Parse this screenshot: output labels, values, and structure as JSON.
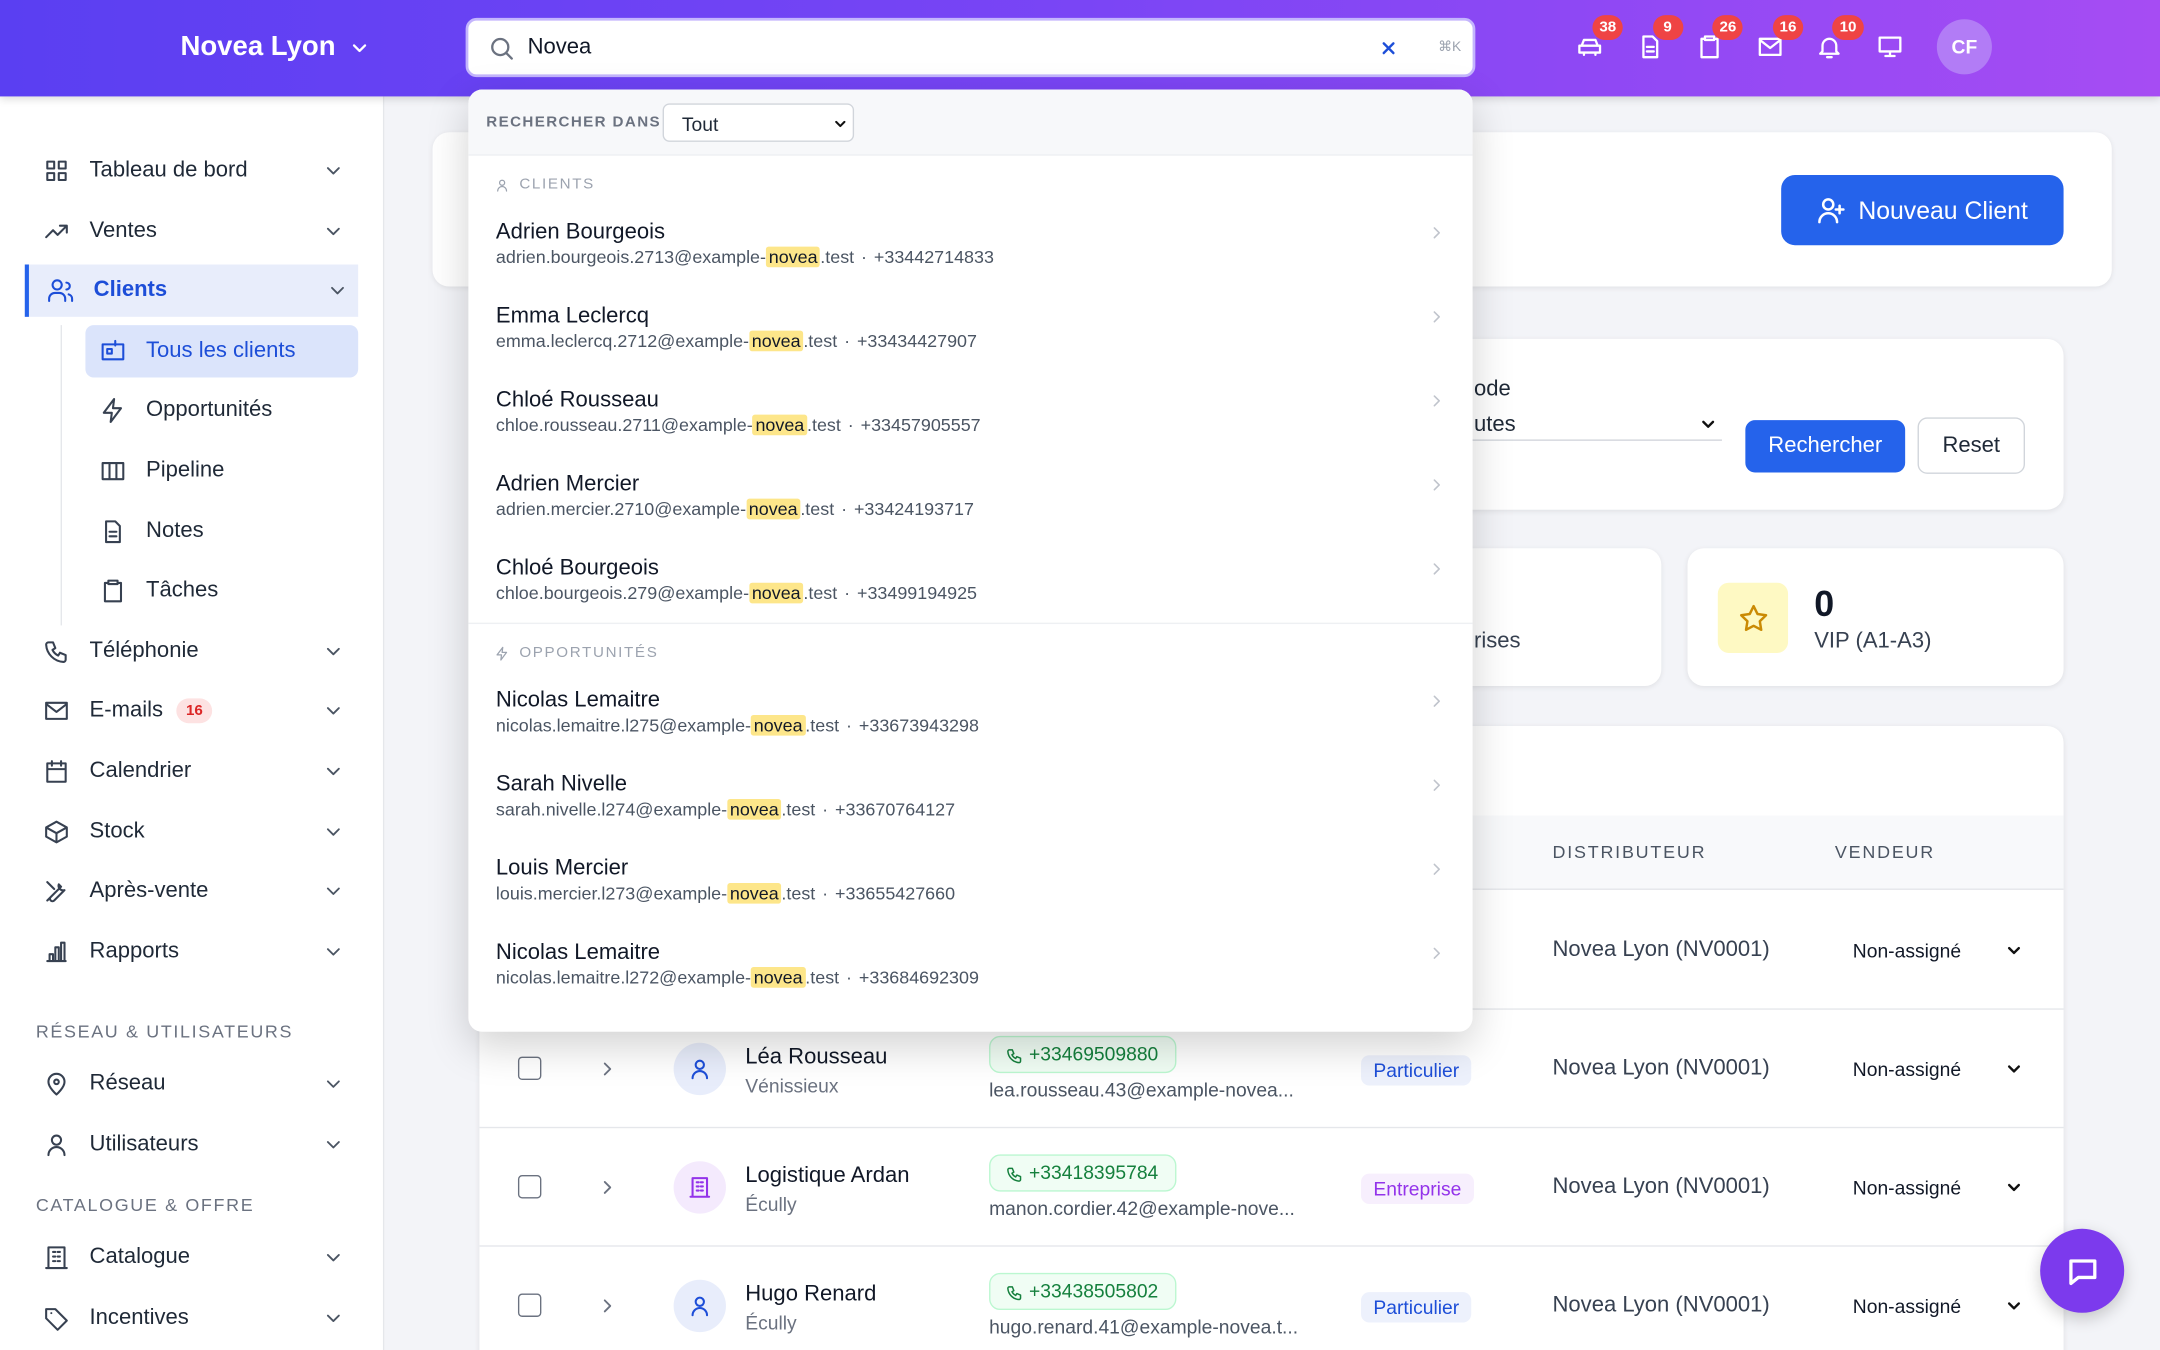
{
  "header": {
    "brand": "Novea Lyon",
    "search_query": "Novea",
    "shortcut": "⌘K",
    "badges": [
      38,
      9,
      26,
      16,
      10
    ],
    "avatar": "CF"
  },
  "sidebar": {
    "main": [
      {
        "label": "Tableau de bord",
        "icon": "grid"
      },
      {
        "label": "Ventes",
        "icon": "trend"
      },
      {
        "label": "Clients",
        "icon": "users",
        "active": true,
        "children": [
          {
            "label": "Tous les clients",
            "icon": "card",
            "active": true
          },
          {
            "label": "Opportunités",
            "icon": "bolt"
          },
          {
            "label": "Pipeline",
            "icon": "columns"
          },
          {
            "label": "Notes",
            "icon": "doc"
          },
          {
            "label": "Tâches",
            "icon": "clipboard"
          }
        ]
      },
      {
        "label": "Téléphonie",
        "icon": "phone"
      },
      {
        "label": "E-mails",
        "icon": "mail",
        "badge": 16
      },
      {
        "label": "Calendrier",
        "icon": "calendar"
      },
      {
        "label": "Stock",
        "icon": "box"
      },
      {
        "label": "Après-vente",
        "icon": "tools"
      },
      {
        "label": "Rapports",
        "icon": "chart"
      }
    ],
    "sections": [
      {
        "title": "RÉSEAU & UTILISATEURS",
        "items": [
          {
            "label": "Réseau",
            "icon": "pin"
          },
          {
            "label": "Utilisateurs",
            "icon": "person"
          }
        ]
      },
      {
        "title": "CATALOGUE & OFFRE",
        "items": [
          {
            "label": "Catalogue",
            "icon": "building"
          },
          {
            "label": "Incentives",
            "icon": "tag"
          }
        ]
      }
    ]
  },
  "search_panel": {
    "scope_label": "RECHERCHER DANS",
    "scope": "Tout",
    "separator": "·",
    "groups": [
      {
        "title": "CLIENTS",
        "icon": "person",
        "results": [
          {
            "name": "Adrien Bourgeois",
            "email": [
              "adrien.bourgeois.2713@example-",
              "novea",
              ".test"
            ],
            "phone": "+33442714833"
          },
          {
            "name": "Emma Leclercq",
            "email": [
              "emma.leclercq.2712@example-",
              "novea",
              ".test"
            ],
            "phone": "+33434427907"
          },
          {
            "name": "Chloé Rousseau",
            "email": [
              "chloe.rousseau.2711@example-",
              "novea",
              ".test"
            ],
            "phone": "+33457905557"
          },
          {
            "name": "Adrien Mercier",
            "email": [
              "adrien.mercier.2710@example-",
              "novea",
              ".test"
            ],
            "phone": "+33424193717"
          },
          {
            "name": "Chloé Bourgeois",
            "email": [
              "chloe.bourgeois.279@example-",
              "novea",
              ".test"
            ],
            "phone": "+33499194925"
          }
        ]
      },
      {
        "title": "OPPORTUNITÉS",
        "icon": "bolt",
        "results": [
          {
            "name": "Nicolas Lemaitre",
            "email": [
              "nicolas.lemaitre.l275@example-",
              "novea",
              ".test"
            ],
            "phone": "+33673943298"
          },
          {
            "name": "Sarah Nivelle",
            "email": [
              "sarah.nivelle.l274@example-",
              "novea",
              ".test"
            ],
            "phone": "+33670764127"
          },
          {
            "name": "Louis Mercier",
            "email": [
              "louis.mercier.l273@example-",
              "novea",
              ".test"
            ],
            "phone": "+33655427660"
          },
          {
            "name": "Nicolas Lemaitre",
            "email": [
              "nicolas.lemaitre.l272@example-",
              "novea",
              ".test"
            ],
            "phone": "+33684692309"
          }
        ]
      }
    ]
  },
  "page": {
    "new_client_button": "Nouveau Client",
    "filter": {
      "label_fragment": "ode",
      "select_fragment": "utes",
      "search_button": "Rechercher",
      "reset_button": "Reset"
    },
    "stats": [
      {
        "label_fragment": "rises"
      },
      {
        "value": 0,
        "label": "VIP (A1-A3)"
      }
    ],
    "table": {
      "columns": [
        "DISTRIBUTEUR",
        "VENDEUR"
      ],
      "rows": [
        {
          "distributor": "Novea Lyon (NV0001)",
          "vendor": "Non-assigné"
        },
        {
          "name": "Léa Rousseau",
          "city": "Vénissieux",
          "phone": "+33469509880",
          "email": "lea.rousseau.43@example-novea...",
          "type": "Particulier",
          "color": "#1d4ed8",
          "icon": "person",
          "distributor": "Novea Lyon (NV0001)",
          "vendor": "Non-assigné"
        },
        {
          "name": "Logistique Ardan",
          "city": "Écully",
          "phone": "+33418395784",
          "email": "manon.cordier.42@example-nove...",
          "type": "Entreprise",
          "color": "#9333ea",
          "icon": "building",
          "distributor": "Novea Lyon (NV0001)",
          "vendor": "Non-assigné"
        },
        {
          "name": "Hugo Renard",
          "city": "Écully",
          "phone": "+33438505802",
          "email": "hugo.renard.41@example-novea.t...",
          "type": "Particulier",
          "color": "#1d4ed8",
          "icon": "person",
          "distributor": "Novea Lyon (NV0001)",
          "vendor": "Non-assigné"
        }
      ]
    }
  }
}
